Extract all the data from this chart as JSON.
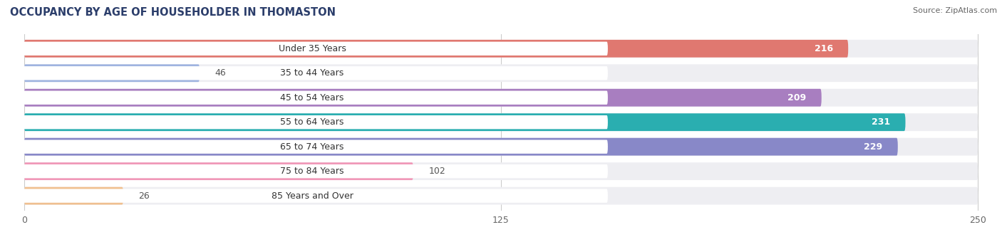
{
  "title": "OCCUPANCY BY AGE OF HOUSEHOLDER IN THOMASTON",
  "source": "Source: ZipAtlas.com",
  "categories": [
    "Under 35 Years",
    "35 to 44 Years",
    "45 to 54 Years",
    "55 to 64 Years",
    "65 to 74 Years",
    "75 to 84 Years",
    "85 Years and Over"
  ],
  "values": [
    216,
    46,
    209,
    231,
    229,
    102,
    26
  ],
  "bar_colors": [
    "#E07870",
    "#A0B4E0",
    "#A87EC0",
    "#2AAEB0",
    "#8888C8",
    "#F098B8",
    "#F0C090"
  ],
  "bar_bg_colors": [
    "#EEEEF2",
    "#EEEEF2",
    "#EEEEF2",
    "#EEEEF2",
    "#EEEEF2",
    "#EEEEF2",
    "#EEEEF2"
  ],
  "xlim": [
    0,
    250
  ],
  "xticks": [
    0,
    125,
    250
  ],
  "title_fontsize": 10.5,
  "source_fontsize": 8,
  "label_fontsize": 9,
  "value_fontsize": 9,
  "background_color": "#FFFFFF",
  "label_pill_color": "#FFFFFF",
  "grid_color": "#CCCCCC"
}
